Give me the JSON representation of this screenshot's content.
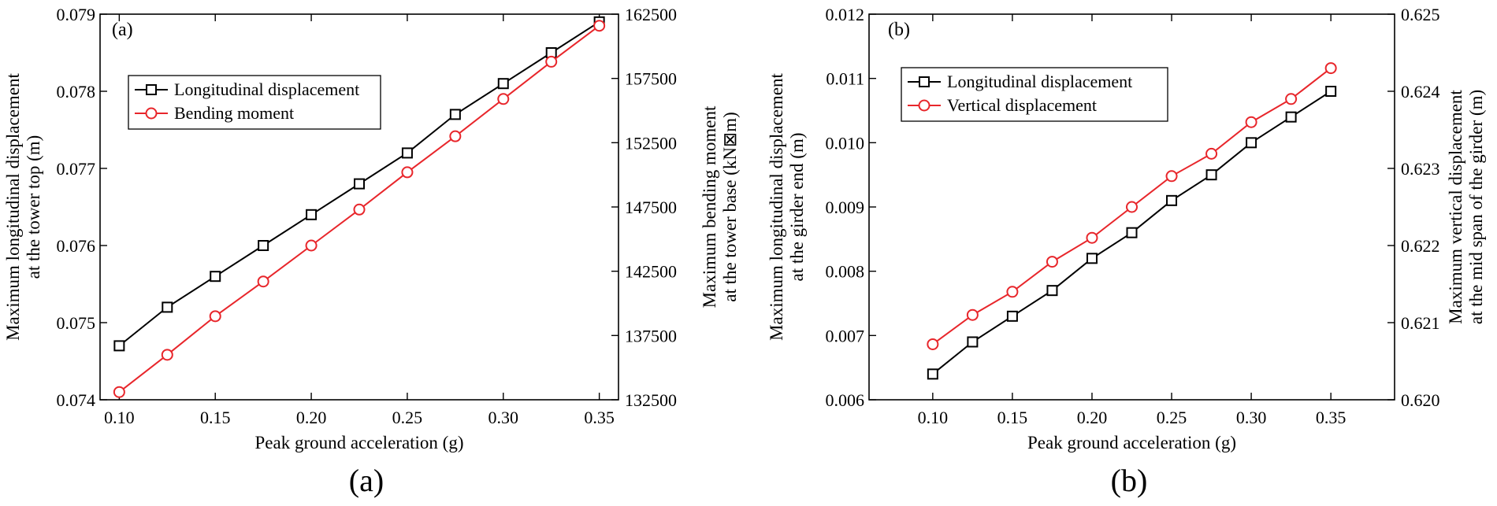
{
  "colors": {
    "black_series": "#000000",
    "red_series": "#e8262b",
    "axis": "#000000"
  },
  "chart_data": [
    {
      "type": "line",
      "panel_label": "(a)",
      "caption": "(a)",
      "xlabel": "Peak ground acceleration (g)",
      "ylabel_left": [
        "Maximum longitudinal displacement",
        "at the tower top (m)"
      ],
      "ylabel_right": [
        "Maximum bending moment",
        "at the tower base (kN⊠m)"
      ],
      "xlim": [
        0.09,
        0.36
      ],
      "ylim_left": [
        0.074,
        0.079
      ],
      "ylim_right": [
        132500,
        162500
      ],
      "x_ticks": [
        0.1,
        0.15,
        0.2,
        0.25,
        0.3,
        0.35
      ],
      "x_tick_labels": [
        "0.10",
        "0.15",
        "0.20",
        "0.25",
        "0.30",
        "0.35"
      ],
      "y_left_ticks": [
        0.074,
        0.075,
        0.076,
        0.077,
        0.078,
        0.079
      ],
      "y_left_tick_labels": [
        "0.074",
        "0.075",
        "0.076",
        "0.077",
        "0.078",
        "0.079"
      ],
      "y_right_ticks": [
        132500,
        137500,
        142500,
        147500,
        152500,
        157500,
        162500
      ],
      "y_right_tick_labels": [
        "132500",
        "137500",
        "142500",
        "147500",
        "152500",
        "157500",
        "162500"
      ],
      "legend_position": "upper-left",
      "x": [
        0.1,
        0.125,
        0.15,
        0.175,
        0.2,
        0.225,
        0.25,
        0.275,
        0.3,
        0.325,
        0.35
      ],
      "series": [
        {
          "name": "Longitudinal displacement",
          "axis": "left",
          "marker": "square",
          "color": "#000000",
          "values": [
            0.0747,
            0.0752,
            0.0756,
            0.076,
            0.0764,
            0.0768,
            0.0772,
            0.0777,
            0.0781,
            0.0785,
            0.0789
          ]
        },
        {
          "name": "Bending moment",
          "axis": "right",
          "marker": "circle",
          "color": "#e8262b",
          "values": [
            133100,
            136000,
            139000,
            141700,
            144500,
            147300,
            150200,
            153000,
            155900,
            158800,
            161600
          ]
        }
      ]
    },
    {
      "type": "line",
      "panel_label": "(b)",
      "caption": "(b)",
      "xlabel": "Peak ground acceleration (g)",
      "ylabel_left": [
        "Maximum longitudinal displacement",
        "at the girder end (m)"
      ],
      "ylabel_right": [
        "Maximum vertical displacement",
        "at the mid span of the girder (m)"
      ],
      "xlim": [
        0.06,
        0.39
      ],
      "ylim_left": [
        0.006,
        0.012
      ],
      "ylim_right": [
        0.62,
        0.625
      ],
      "x_ticks": [
        0.1,
        0.15,
        0.2,
        0.25,
        0.3,
        0.35
      ],
      "x_tick_labels": [
        "0.10",
        "0.15",
        "0.20",
        "0.25",
        "0.30",
        "0.35"
      ],
      "y_left_ticks": [
        0.006,
        0.007,
        0.008,
        0.009,
        0.01,
        0.011,
        0.012
      ],
      "y_left_tick_labels": [
        "0.006",
        "0.007",
        "0.008",
        "0.009",
        "0.010",
        "0.011",
        "0.012"
      ],
      "y_right_ticks": [
        0.62,
        0.621,
        0.622,
        0.623,
        0.624,
        0.625
      ],
      "y_right_tick_labels": [
        "0.620",
        "0.621",
        "0.622",
        "0.623",
        "0.624",
        "0.625"
      ],
      "legend_position": "upper-left",
      "x": [
        0.1,
        0.125,
        0.15,
        0.175,
        0.2,
        0.225,
        0.25,
        0.275,
        0.3,
        0.325,
        0.35
      ],
      "series": [
        {
          "name": "Longitudinal displacement",
          "axis": "left",
          "marker": "square",
          "color": "#000000",
          "values": [
            0.0064,
            0.0069,
            0.0073,
            0.0077,
            0.0082,
            0.0086,
            0.0091,
            0.0095,
            0.01,
            0.0104,
            0.0108
          ]
        },
        {
          "name": "Vertical displacement",
          "axis": "right",
          "marker": "circle",
          "color": "#e8262b",
          "values": [
            0.62072,
            0.6211,
            0.6214,
            0.62179,
            0.6221,
            0.6225,
            0.6229,
            0.62319,
            0.6236,
            0.6239,
            0.6243
          ]
        }
      ]
    }
  ]
}
